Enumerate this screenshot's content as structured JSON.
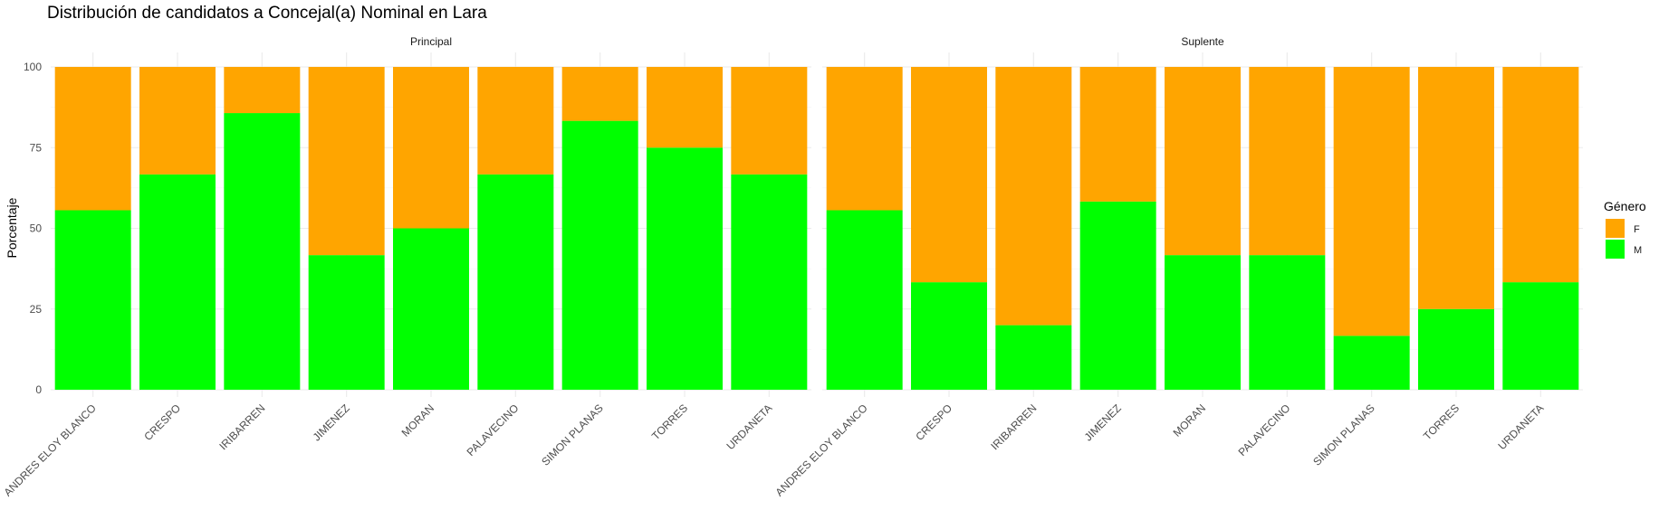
{
  "chart_data": {
    "type": "bar",
    "stacked": true,
    "title": "Distribución de candidatos a Concejal(a) Nominal en Lara",
    "ylabel": "Porcentaje",
    "xlabel": "",
    "ylim": [
      0,
      100
    ],
    "yticks": [
      0,
      25,
      50,
      75,
      100
    ],
    "grid": true,
    "categories": [
      "ANDRES ELOY BLANCO",
      "CRESPO",
      "IRIBARREN",
      "JIMENEZ",
      "MORAN",
      "PALAVECINO",
      "SIMON PLANAS",
      "TORRES",
      "URDANETA"
    ],
    "legend": {
      "title": "Género",
      "position": "right",
      "entries": [
        {
          "key": "F",
          "color": "#FFA500"
        },
        {
          "key": "M",
          "color": "#00FF00"
        }
      ]
    },
    "facets": [
      {
        "label": "Principal",
        "series": [
          {
            "name": "M",
            "values": [
              55.6,
              66.7,
              85.7,
              41.7,
              50.0,
              66.7,
              83.3,
              75.0,
              66.7
            ]
          },
          {
            "name": "F",
            "values": [
              44.4,
              33.3,
              14.3,
              58.3,
              50.0,
              33.3,
              16.7,
              25.0,
              33.3
            ]
          }
        ]
      },
      {
        "label": "Suplente",
        "series": [
          {
            "name": "M",
            "values": [
              55.6,
              33.3,
              20.0,
              58.3,
              41.7,
              41.7,
              16.7,
              25.0,
              33.3
            ]
          },
          {
            "name": "F",
            "values": [
              44.4,
              66.7,
              80.0,
              41.7,
              58.3,
              58.3,
              83.3,
              75.0,
              66.7
            ]
          }
        ]
      }
    ]
  }
}
